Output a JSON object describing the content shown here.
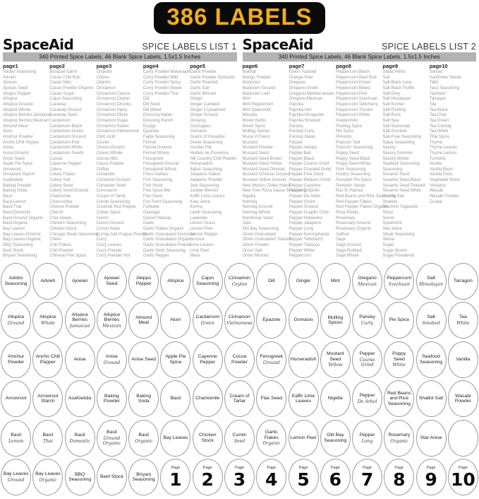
{
  "banner": {
    "label": "386 LABELS",
    "bg_color": "#0a0a0a",
    "text_color": "#f2ac1d"
  },
  "lists": [
    {
      "brand": "SpaceAid",
      "title": "SPICE LABELS LIST 1",
      "subtitle": "340 Printed Spice Labels, 46 Blank Spice Labels, 1.5x1.5 Inches",
      "columns": [
        {
          "header": "page1",
          "items": [
            "Adobo Seasoning",
            "Advieh",
            "Ajowan",
            "Ajowan Seed",
            "Aleppo Pepper",
            "Allspice",
            "Allspice:Ground",
            "Allspice:Whole",
            "Allspice Berries:Jamaican",
            "Allspice Berries:Mexican",
            "Almond Meal",
            "Alum",
            "Amchur Powder",
            "Ancho Chili Pepper",
            "Anise",
            "Anise:Ground",
            "Anise Seed",
            "Apple Pie Spice",
            "Arrowroot",
            "Arrowroot Starch",
            "Asafoetida",
            "Baking Powder",
            "Baking Soda",
            "Basil",
            "Basil:Lemon",
            "Basil:Thai",
            "Basil:Domestic",
            "Basil:Ground Organic",
            "Basil:Organic",
            "Bay Leaves",
            "Bay Leaves:Ground",
            "Bay Leaves:Organic",
            "BBQ Seasoning",
            "Beef Stock",
            "Biryani Seasoning"
          ]
        },
        {
          "header": "page2",
          "items": [
            "Bouquet Garni",
            "Cacao Chili Rub",
            "Cacao Nibs",
            "Cacao Powder Organic",
            "Cacao Sugar",
            "Cajun Seasoning",
            "Caraway",
            "Caraway:Ground",
            "Caraway Seed",
            "Cardamom",
            "Cardamom:Black",
            "Cardamom:Green",
            "Cardamom:Ground",
            "Cardamom:Pod",
            "Cardamom:White",
            "Cardamom Seeds",
            "Cassia",
            "Cayenne Pepper",
            "Celery",
            "Celery Flakes",
            "Celery Salt",
            "Celery Seed",
            "Celery Seed:Ground",
            "Chamomile",
            "Charnushka",
            "Cheese Powder",
            "Chervil",
            "Chia Seeds",
            "Chicken Seasoning",
            "Chicken Stock",
            "Chicago Steak Seasoning",
            "Chiles",
            "Chili Flakes",
            "Chili Powder",
            "Chinese Five Spice"
          ]
        },
        {
          "header": "page3",
          "items": [
            "Chipotle",
            "Chives",
            "Cilantro",
            "Cinnamon",
            "Cinnamon:Cassia",
            "Cinnamon:Ceylon",
            "Cinnamon:Chunks",
            "Cinnamon:Spicy",
            "Cinnamon:Sticks",
            "Cinnamon:Sugar",
            "Cinnamon:Sweet",
            "Cinnamon:Vietnamese",
            "Citric Acid",
            "Cloves",
            "Cloves:Ground",
            "Cloves:Whole",
            "Cocoa Nibs",
            "Cocoa Powder",
            "Coffee",
            "Coriander",
            "Coriander:Ground",
            "Coriander Seed",
            "Cornstarch",
            "Cream of Tartar",
            "Creole Seasoning",
            "Crushed Red Pepper",
            "Cuban Spice",
            "Cumin",
            "Cumin:Ground",
            "Cumin:Seed",
            "Curing Salt Prague Powder",
            "Curry",
            "Curry Leaves",
            "Curry Powder",
            "Curry Powder:Hot"
          ]
        },
        {
          "header": "page4",
          "items": [
            "Curry Powder:Maharajah",
            "Curry Powder:Mild",
            "Curry Powder:Spicy",
            "Curry Powder:Sweet",
            "Curry Powder:Thai",
            "Dill",
            "Dill Seed",
            "Dill Weed",
            "Dressing:Italian",
            "Dressing:Ranch",
            "Duqqa",
            "Epazote",
            "Fajita Seasoning",
            "Fennel",
            "Fennel:Ground",
            "Fennel:Whole",
            "Fenugreek",
            "Fenugreek:Ground",
            "Fenugreek:Whole",
            "Fines Herbes",
            "Fish Seasoning",
            "Fish Stock",
            "Five Spice Mix",
            "Flax Seed",
            "Fox Point Seasoning",
            "Furikake",
            "Galangal",
            "Garam Masala",
            "Garlic",
            "Garlic Flakes Organic",
            "Garlic Granulated Domestic",
            "Garlic Granulated Organic",
            "Garlic Granulated Powder",
            "Garlic Herb Seasoning",
            "Garlic Pepper"
          ]
        },
        {
          "header": "page5",
          "items": [
            "Garlic Powder",
            "Garlic Powder Domestic",
            "Garlic Roasted",
            "Garlic Salt",
            "Garlic Minced",
            "Ginger",
            "Ginger Candied",
            "Ginger Crystallized",
            "Ginger Ground",
            "Ginseng",
            "Gochugaru",
            "Gomasio",
            "Grains of Paradise",
            "Greek Seasoning",
            "Gumbo File",
            "Herbes de Provence",
            "Hill Country Chili Powder",
            "Horseradish",
            "Italian Seasoning",
            "Jalapeno Flakes",
            "Jalapeno Powder",
            "Jerk Seasoning",
            "Juniper Berries",
            "Kaffir Lime Leaves",
            "Kala Jeera",
            "Korma",
            "Lamb Seasoning",
            "Lavender",
            "Lemon Grass",
            "Lemon Peel",
            "Lemon Pepper",
            "Licorice",
            "Lime Leaves",
            "Lime Peel",
            "Mace"
          ]
        }
      ]
    },
    {
      "brand": "SpaceAid",
      "title": "SPICE LABELS LIST 2",
      "subtitle": "340 Printed Spice Labels, 46 Blank Spice Labels, 1.5x1.5 Inches",
      "columns": [
        {
          "header": "page6",
          "items": [
            "Mahlab",
            "Mango Powder",
            "Marjoram",
            "Marjoram:Ground",
            "Marjoram Leaf",
            "Mint",
            "Mint:Peppermint",
            "Mint:Spearmint",
            "Mitsuba",
            "Mixed Herbs",
            "Mixed Spice",
            "Mulling Spices",
            "Mural of Flavor",
            "Mustard",
            "Mustard Powder",
            "Mustard Seed",
            "Mustard Seed:Brown",
            "Mustard Seed:Yellow",
            "Mustard Seed:Oriental",
            "Mustard Chinese Ground",
            "Mustard Yellow Ground",
            "New Mexico Chiles Hatch",
            "New York Pizza Sauce Seasoning",
            "Nigella",
            "Nutmeg",
            "Nutmeg:Ground",
            "Nutmeg:Whole",
            "Nutritional Yeast",
            "Oats",
            "Old Bay Seasoning",
            "Onion Granulated",
            "Onion Granulated Toasted",
            "Onion Powder",
            "Onion Salt",
            "Onion Minced"
          ]
        },
        {
          "header": "page7",
          "items": [
            "Onion Toasted",
            "Orange Peel",
            "Oregano",
            "Oregano:Greek",
            "Oregano:Mediterranean",
            "Oregano:Mexican",
            "Paprika",
            "Paprika:Hot",
            "Paprika:Hungarian",
            "Paprika:Smoked",
            "Parsley",
            "Parsley:Curly",
            "Parsley:Italian",
            "Pepper",
            "Pepper:Aleppo",
            "Pepper:Bell",
            "Pepper:Black",
            "Pepper:Coarse Grind",
            "Pepper:Cracked Grind",
            "Pepper:Fine Grind",
            "Pepper:Medium Grind",
            "Pepper:Cayenne",
            "Pepper:Chipotle",
            "Pepper:De Arbol",
            "Pepper:Ghost",
            "Pepper:Ground",
            "Pepper:Guajillo Chile",
            "Pepper:Habanero",
            "Pepper:Jalapeno",
            "Pepper:Long",
            "Pepper:Pennsylvania",
            "Pepper:Tellicherry",
            "Pepper:Tobacco",
            "Pepper:White",
            "Peppercorn"
          ]
        },
        {
          "header": "page8",
          "items": [
            "Peppercorn:Black",
            "Peppercorn:Beef Rub",
            "Peppercorn:Green",
            "Peppercorn:Mixed",
            "Peppercorn:Pink",
            "Peppercorn:Szechuan",
            "Peppercorn:Tellicherry",
            "Peppercorn:Tricolor",
            "Peppercorn:White",
            "Peppermint",
            "Pickling Spice",
            "Pie Spice",
            "Pimento",
            "Popcorn Salt",
            "Popcorn Seasoning",
            "Poppy Seed",
            "Poppy Seed:Black",
            "Poppy Seed:White",
            "Pork Seasoning",
            "Poultry Seasoning",
            "Pumpkin Pie Spice",
            "Pumpkin Seeds",
            "Ras El Hanout",
            "Red Beans and Rice Seasoning",
            "Red Pepper Flakes",
            "Red Pepper Flakes Organic",
            "Rose Petals",
            "Rosemary",
            "Rosemary:Ground",
            "Rosemary:Organic",
            "Saffron",
            "Sage",
            "Sage:Ground",
            "Sage:Rubbed",
            "Sage:Whole"
          ]
        },
        {
          "header": "page9",
          "items": [
            "Salad Herbs",
            "Salt",
            "Salt:Black Lava",
            "Salt:Black Truffle",
            "Salt:Grey",
            "Salt:Himalayan",
            "Salt:Kosher",
            "Salt:Pickling",
            "Salt:Rock",
            "Salt:Sea",
            "Salt:Seasoned",
            "Salt:Smoked",
            "Salt-Free Seasoning",
            "Satay Seasoning",
            "Savory",
            "Savory:Summer",
            "Savory:Winter",
            "Seafood Seasoning",
            "Seasoning",
            "Sesame Seed",
            "Sesame Seed:Black",
            "Sesame Seed:Toasted",
            "Sesame Seed:White",
            "Shallot Salt",
            "Shallots",
            "Shichimi Togarashi",
            "Shiso",
            "Sorrel",
            "Spearmint",
            "Star Anise",
            "Steak Seasoning",
            "Stevia",
            "Sugar",
            "Sugar:Brown",
            "Sugar:Powdered"
          ]
        },
        {
          "header": "page10",
          "items": [
            "Sumac",
            "Sunflower Seeds",
            "Tabil",
            "Taco Seasoning",
            "Tandoori",
            "Tarragon",
            "Tea",
            "Tea:Black",
            "Tea:Chai",
            "Tea:Green",
            "Tea:Oolong",
            "Tea:White",
            "Thai Spice",
            "Thyme",
            "Thyme Leaves",
            "Thyme Lemon",
            "Turmeric",
            "Vanilla",
            "Vanilla Bean",
            "Vanilla Pods",
            "Vegetable Stock",
            "Vindaloo",
            "Wasabi",
            "Wasabi Powder",
            "Za'atar"
          ]
        }
      ]
    }
  ],
  "grid": {
    "rows": [
      [
        {
          "name": "Adobo Seasoning"
        },
        {
          "name": "Advieh"
        },
        {
          "name": "Ajowan"
        },
        {
          "name": "Ajowan Seed"
        },
        {
          "name": "Aleppo Pepper"
        },
        {
          "name": "Allspice"
        },
        {
          "name": "Cajun Seasoning"
        },
        {
          "name": "Cinnamon",
          "variant": "Ceylon"
        },
        {
          "name": "Dill"
        },
        {
          "name": "Ginger"
        },
        {
          "name": "Mint"
        },
        {
          "name": "Oregano",
          "variant": "Mexican"
        },
        {
          "name": "Peppercorn",
          "variant": "Szechuan"
        },
        {
          "name": "Salt",
          "variant": "Himalayan"
        },
        {
          "name": "Tarragon"
        }
      ],
      [
        {
          "name": "Allspice",
          "variant": "Ground"
        },
        {
          "name": "Allspice",
          "variant": "Whole"
        },
        {
          "name": "Allspice Berries",
          "variant": "Jamaican"
        },
        {
          "name": "Allspice Berries",
          "variant": "Mexican"
        },
        {
          "name": "Almond Meal"
        },
        {
          "name": "Alum"
        },
        {
          "name": "Cardamom",
          "variant": "Green"
        },
        {
          "name": "Cinnamon",
          "variant": "Vietnamese"
        },
        {
          "name": "Epazote"
        },
        {
          "name": "Gomasio"
        },
        {
          "name": "Mulling Spices"
        },
        {
          "name": "Parsley",
          "variant": "Curly"
        },
        {
          "name": "Pie Spice"
        },
        {
          "name": "Salt",
          "variant": "Smoked"
        },
        {
          "name": "Tea",
          "variant": "White"
        }
      ],
      [
        {
          "name": "Amchur Powder"
        },
        {
          "name": "Ancho Chili Pepper"
        },
        {
          "name": "Anise"
        },
        {
          "name": "Anise",
          "variant": "Ground"
        },
        {
          "name": "Anise Seed"
        },
        {
          "name": "Apple Pie Spice"
        },
        {
          "name": "Cayenne Pepper"
        },
        {
          "name": "Cocoa Powder"
        },
        {
          "name": "Fenugreek",
          "variant": "Ground"
        },
        {
          "name": "Horseradish"
        },
        {
          "name": "Mustard Seed",
          "variant": "Yellow"
        },
        {
          "name": "Pepper",
          "variant": "Coarse Grind"
        },
        {
          "name": "Poppy Seed",
          "variant": "White"
        },
        {
          "name": "Seafood Seasoning"
        },
        {
          "name": "Vanilla"
        }
      ],
      [
        {
          "name": "Arrowroot"
        },
        {
          "name": "Arrowroot Starch"
        },
        {
          "name": "Asafoetida"
        },
        {
          "name": "Baking Powder"
        },
        {
          "name": "Baking Soda"
        },
        {
          "name": "Basil"
        },
        {
          "name": "Chamomile"
        },
        {
          "name": "Cream of Tartar"
        },
        {
          "name": "Flax Seed"
        },
        {
          "name": "Kaffir Lime Leaves"
        },
        {
          "name": "Nigella"
        },
        {
          "name": "Pepper",
          "variant": "De Arbol"
        },
        {
          "name": "Red Beans and Rice Seasoning"
        },
        {
          "name": "Shallot Salt"
        },
        {
          "name": "Wasabi Powder"
        }
      ],
      [
        {
          "name": "Basil",
          "variant": "Lemon"
        },
        {
          "name": "Basil",
          "variant": "Thai"
        },
        {
          "name": "Basil",
          "variant": "Domestic"
        },
        {
          "name": "Basil",
          "variant": "Ground Organic"
        },
        {
          "name": "Basil",
          "variant": "Organic"
        },
        {
          "name": "Bay Leaves"
        },
        {
          "name": "Chicken Stock"
        },
        {
          "name": "Cumin",
          "variant": "Seed"
        },
        {
          "name": "Garlic Flakes",
          "variant": "Organic"
        },
        {
          "name": "Lemon Peel"
        },
        {
          "name": "Old Bay Seasoning"
        },
        {
          "name": "Pepper",
          "variant": "Long"
        },
        {
          "name": "Rosemary",
          "variant": "Organic"
        },
        {
          "name": "Star Anise"
        },
        {
          "blank": true
        }
      ],
      [
        {
          "name": "Bay Leaves",
          "variant": "Ground"
        },
        {
          "name": "Bay Leaves",
          "variant": "Organic"
        },
        {
          "name": "BBQ Seasoning"
        },
        {
          "name": "Beef Stock"
        },
        {
          "name": "Biryani Seasoning"
        },
        {
          "page": "Page",
          "num": "1"
        },
        {
          "page": "Page",
          "num": "2"
        },
        {
          "page": "Page",
          "num": "3"
        },
        {
          "page": "Page",
          "num": "4"
        },
        {
          "page": "Page",
          "num": "5"
        },
        {
          "page": "Page",
          "num": "6"
        },
        {
          "page": "Page",
          "num": "7"
        },
        {
          "page": "Page",
          "num": "8"
        },
        {
          "page": "Page",
          "num": "9"
        },
        {
          "page": "Page",
          "num": "10"
        }
      ]
    ]
  }
}
